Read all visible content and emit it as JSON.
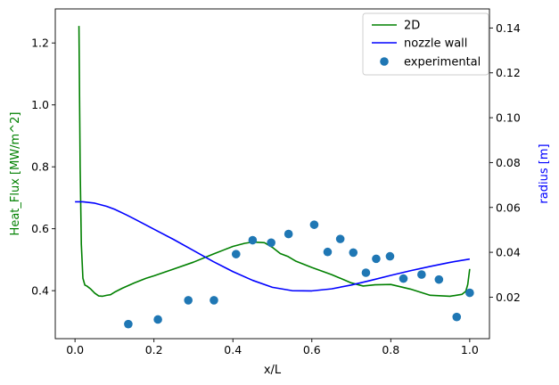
{
  "chart_data": {
    "type": "line",
    "title": "",
    "xlabel": "x/L",
    "ylabel_left": "Heat_Flux [MW/m^2]",
    "ylabel_right": "radius [m]",
    "ylabel_left_color": "#008000",
    "ylabel_right_color": "#0000ff",
    "xlim": [
      -0.05,
      1.05
    ],
    "ylim_left": [
      0.245,
      1.31
    ],
    "ylim_right": [
      0.0015,
      0.1485
    ],
    "xticks": [
      "0.0",
      "0.2",
      "0.4",
      "0.6",
      "0.8",
      "1.0"
    ],
    "xtick_values": [
      0.0,
      0.2,
      0.4,
      0.6,
      0.8,
      1.0
    ],
    "yticks_left": [
      "0.4",
      "0.6",
      "0.8",
      "1.0",
      "1.2"
    ],
    "ytick_values_left": [
      0.4,
      0.6,
      0.8,
      1.0,
      1.2
    ],
    "yticks_right": [
      "0.02",
      "0.04",
      "0.06",
      "0.08",
      "0.10",
      "0.12",
      "0.14"
    ],
    "ytick_values_right": [
      0.02,
      0.04,
      0.06,
      0.08,
      0.1,
      0.12,
      0.14
    ],
    "grid": false,
    "legend_position": "top-right",
    "series": [
      {
        "name": "2D",
        "axis": "left",
        "style": "line",
        "color": "#008000",
        "x": [
          0.01,
          0.013,
          0.016,
          0.02,
          0.025,
          0.03,
          0.04,
          0.05,
          0.06,
          0.07,
          0.08,
          0.09,
          0.1,
          0.12,
          0.15,
          0.18,
          0.2,
          0.25,
          0.3,
          0.35,
          0.38,
          0.4,
          0.43,
          0.45,
          0.48,
          0.5,
          0.52,
          0.54,
          0.56,
          0.6,
          0.65,
          0.7,
          0.73,
          0.76,
          0.8,
          0.85,
          0.9,
          0.95,
          0.98,
          0.99,
          0.995,
          1.0
        ],
        "y": [
          1.255,
          0.8,
          0.55,
          0.44,
          0.418,
          0.415,
          0.405,
          0.392,
          0.383,
          0.382,
          0.385,
          0.387,
          0.395,
          0.408,
          0.425,
          0.44,
          0.448,
          0.47,
          0.492,
          0.518,
          0.533,
          0.543,
          0.553,
          0.557,
          0.555,
          0.54,
          0.52,
          0.51,
          0.495,
          0.475,
          0.452,
          0.425,
          0.415,
          0.419,
          0.42,
          0.405,
          0.385,
          0.382,
          0.388,
          0.398,
          0.42,
          0.47
        ]
      },
      {
        "name": "nozzle wall",
        "axis": "right",
        "style": "line",
        "color": "#0000ff",
        "x": [
          0.0,
          0.02,
          0.05,
          0.08,
          0.1,
          0.13,
          0.15,
          0.2,
          0.25,
          0.3,
          0.35,
          0.4,
          0.45,
          0.5,
          0.55,
          0.6,
          0.65,
          0.7,
          0.75,
          0.8,
          0.85,
          0.9,
          0.95,
          1.0
        ],
        "y": [
          0.0625,
          0.0625,
          0.0619,
          0.0605,
          0.0592,
          0.0567,
          0.0549,
          0.0503,
          0.0457,
          0.0408,
          0.0359,
          0.0314,
          0.0275,
          0.0244,
          0.0229,
          0.0228,
          0.0237,
          0.0254,
          0.0275,
          0.0297,
          0.0318,
          0.0337,
          0.0355,
          0.037
        ]
      },
      {
        "name": "experimental",
        "axis": "left",
        "style": "scatter",
        "color": "#1f77b4",
        "x": [
          0.135,
          0.21,
          0.287,
          0.352,
          0.408,
          0.45,
          0.497,
          0.541,
          0.606,
          0.64,
          0.672,
          0.705,
          0.737,
          0.763,
          0.798,
          0.832,
          0.878,
          0.922,
          0.967,
          1.0
        ],
        "y": [
          0.292,
          0.307,
          0.369,
          0.369,
          0.518,
          0.563,
          0.555,
          0.583,
          0.613,
          0.525,
          0.567,
          0.523,
          0.458,
          0.503,
          0.511,
          0.439,
          0.452,
          0.436,
          0.315,
          0.393
        ]
      }
    ]
  }
}
